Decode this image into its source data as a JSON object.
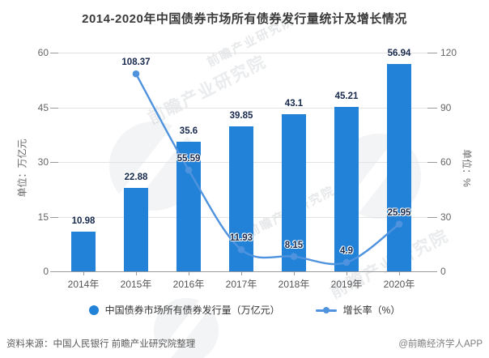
{
  "title": "2014-2020年中国债券市场所有债券发行量统计及增长情况",
  "chart_data": {
    "type": "bar",
    "categories": [
      "2014年",
      "2015年",
      "2016年",
      "2017年",
      "2018年",
      "2019年",
      "2020年"
    ],
    "series": [
      {
        "name": "中国债券市场所有债券发行量（万亿元）",
        "type": "bar",
        "axis": "left",
        "values": [
          10.98,
          22.88,
          35.6,
          39.85,
          43.1,
          45.21,
          56.94
        ],
        "labels": [
          "10.98",
          "22.88",
          "35.6",
          "39.85",
          "43.1",
          "45.21",
          "56.94"
        ],
        "color": "#2182d7"
      },
      {
        "name": "增长率（%）",
        "type": "line",
        "axis": "right",
        "values": [
          null,
          108.37,
          55.59,
          11.93,
          8.15,
          4.9,
          25.95
        ],
        "labels": [
          "",
          "108.37",
          "55.59",
          "11.93",
          "8.15",
          "4.9",
          "25.95"
        ],
        "color": "#4f93de"
      }
    ],
    "left_axis": {
      "name": "单位：万亿元",
      "ticks": [
        0,
        15,
        30,
        45,
        60
      ],
      "range": [
        0,
        60
      ]
    },
    "right_axis": {
      "name": "单位：%",
      "ticks": [
        0,
        30,
        60,
        90,
        120
      ],
      "range": [
        0,
        120
      ]
    },
    "grid": true,
    "legend_position": "bottom"
  },
  "footer": {
    "source": "资料来源：中国人民银行 前瞻产业研究院整理",
    "credit": "@前瞻经济学人APP"
  },
  "watermark_text": "前瞻产业研究院"
}
